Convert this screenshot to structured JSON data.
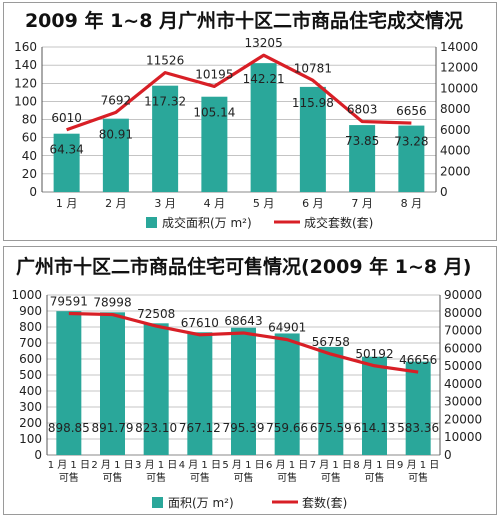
{
  "colors": {
    "bar": "#2aa79a",
    "line": "#d81f26",
    "grid": "#8a8a8a"
  },
  "chart_data": [
    {
      "type": "bar",
      "title": "2009 年 1~8 月广州市十区二市商品住宅成交情况",
      "categories": [
        "1 月",
        "2 月",
        "3 月",
        "4 月",
        "5 月",
        "6 月",
        "7 月",
        "8 月"
      ],
      "ylim_left": [
        0,
        160
      ],
      "ylim_right": [
        0,
        14000
      ],
      "left_ticks": [
        "0",
        "20",
        "40",
        "60",
        "80",
        "100",
        "120",
        "140",
        "160"
      ],
      "right_ticks": [
        "0",
        "2000",
        "4000",
        "6000",
        "8000",
        "10000",
        "12000",
        "14000"
      ],
      "series": [
        {
          "name": "成交面积(万 m²)",
          "type": "bar",
          "axis": "left",
          "values": [
            64.34,
            80.91,
            117.32,
            105.14,
            142.21,
            115.98,
            73.85,
            73.28
          ],
          "labels": [
            "64.34",
            "80.91",
            "117.32",
            "105.14",
            "142.21",
            "115.98",
            "73.85",
            "73.28"
          ]
        },
        {
          "name": "成交套数(套)",
          "type": "line",
          "axis": "right",
          "values": [
            6010,
            7692,
            11526,
            10195,
            13205,
            10781,
            6803,
            6656
          ],
          "labels": [
            "6010",
            "7692",
            "11526",
            "10195",
            "13205",
            "10781",
            "6803",
            "6656"
          ]
        }
      ],
      "legend": [
        "成交面积(万 m²)",
        "成交套数(套)"
      ]
    },
    {
      "type": "bar",
      "title": "广州市十区二市商品住宅可售情况(2009 年 1~8 月)",
      "categories": [
        [
          "1 月 1 日",
          "可售"
        ],
        [
          "2 月 1 日",
          "可售"
        ],
        [
          "3 月 1 日",
          "可售"
        ],
        [
          "4 月 1 日",
          "可售"
        ],
        [
          "5 月 1 日",
          "可售"
        ],
        [
          "6 月 1 日",
          "可售"
        ],
        [
          "7 月 1 日",
          "可售"
        ],
        [
          "8 月 1 日",
          "可售"
        ],
        [
          "9 月 1 日",
          "可售"
        ]
      ],
      "ylim_left": [
        0,
        1000
      ],
      "ylim_right": [
        0,
        90000
      ],
      "left_ticks": [
        "0",
        "100",
        "200",
        "300",
        "400",
        "500",
        "600",
        "700",
        "800",
        "900",
        "1000"
      ],
      "right_ticks": [
        "0",
        "10000",
        "20000",
        "30000",
        "40000",
        "50000",
        "60000",
        "70000",
        "80000",
        "90000"
      ],
      "series": [
        {
          "name": "面积(万 m²)",
          "type": "bar",
          "axis": "left",
          "values": [
            898.85,
            891.79,
            823.1,
            767.12,
            795.39,
            759.66,
            675.59,
            614.13,
            583.36
          ],
          "labels": [
            "898.85",
            "891.79",
            "823.10",
            "767.12",
            "795.39",
            "759.66",
            "675.59",
            "614.13",
            "583.36"
          ]
        },
        {
          "name": "套数(套)",
          "type": "line",
          "axis": "right",
          "values": [
            79591,
            78998,
            72508,
            67610,
            68643,
            64901,
            56758,
            50192,
            46656
          ],
          "labels": [
            "79591",
            "78998",
            "72508",
            "67610",
            "68643",
            "64901",
            "56758",
            "50192",
            "46656"
          ]
        }
      ],
      "legend": [
        "面积(万 m²)",
        "套数(套)"
      ]
    }
  ]
}
